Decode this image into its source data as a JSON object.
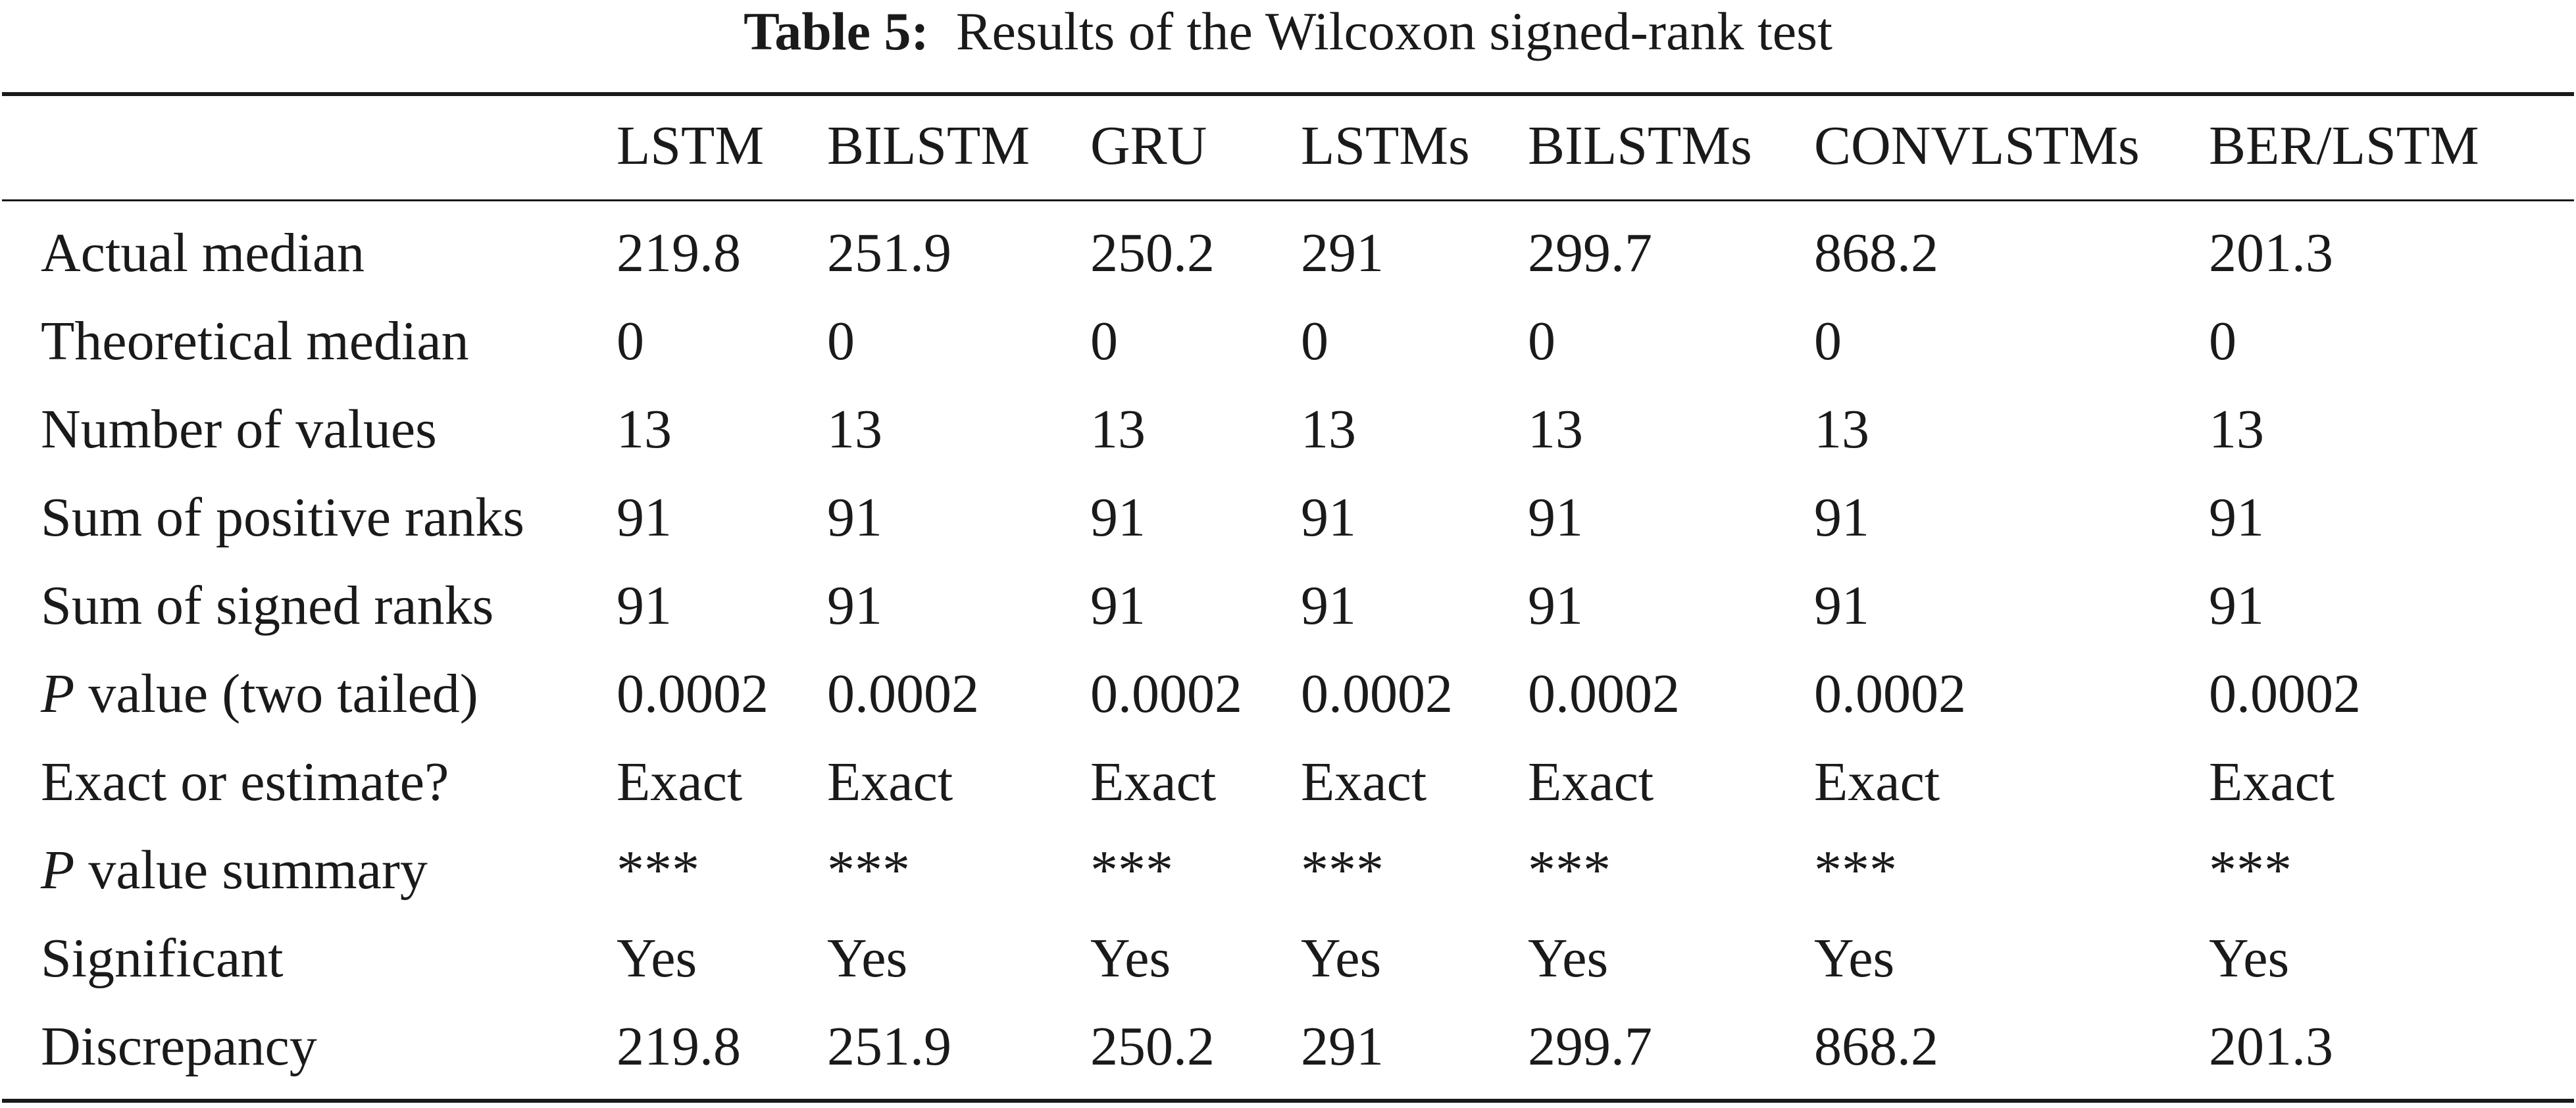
{
  "caption": {
    "label": "Table 5:",
    "text": "Results of the Wilcoxon signed-rank test"
  },
  "columns": [
    "LSTM",
    "BILSTM",
    "GRU",
    "LSTMs",
    "BILSTMs",
    "CONVLSTMs",
    "BER/LSTM"
  ],
  "rows": [
    {
      "label": "Actual median",
      "label_italic": "",
      "label_rest": "",
      "values": [
        "219.8",
        "251.9",
        "250.2",
        "291",
        "299.7",
        "868.2",
        "201.3"
      ]
    },
    {
      "label": "Theoretical median",
      "label_italic": "",
      "label_rest": "",
      "values": [
        "0",
        "0",
        "0",
        "0",
        "0",
        "0",
        "0"
      ]
    },
    {
      "label": "Number of values",
      "label_italic": "",
      "label_rest": "",
      "values": [
        "13",
        "13",
        "13",
        "13",
        "13",
        "13",
        "13"
      ]
    },
    {
      "label": "Sum of positive ranks",
      "label_italic": "",
      "label_rest": "",
      "values": [
        "91",
        "91",
        "91",
        "91",
        "91",
        "91",
        "91"
      ]
    },
    {
      "label": "Sum of signed ranks",
      "label_italic": "",
      "label_rest": "",
      "values": [
        "91",
        "91",
        "91",
        "91",
        "91",
        "91",
        "91"
      ]
    },
    {
      "label": "",
      "label_italic": "P",
      "label_rest": " value (two tailed)",
      "values": [
        "0.0002",
        "0.0002",
        "0.0002",
        "0.0002",
        "0.0002",
        "0.0002",
        "0.0002"
      ]
    },
    {
      "label": "Exact or estimate?",
      "label_italic": "",
      "label_rest": "",
      "values": [
        "Exact",
        "Exact",
        "Exact",
        "Exact",
        "Exact",
        "Exact",
        "Exact"
      ]
    },
    {
      "label": "",
      "label_italic": "P",
      "label_rest": " value summary",
      "values": [
        "***",
        "***",
        "***",
        "***",
        "***",
        "***",
        "***"
      ]
    },
    {
      "label": "Significant",
      "label_italic": "",
      "label_rest": "",
      "values": [
        "Yes",
        "Yes",
        "Yes",
        "Yes",
        "Yes",
        "Yes",
        "Yes"
      ]
    },
    {
      "label": "Discrepancy",
      "label_italic": "",
      "label_rest": "",
      "values": [
        "219.8",
        "251.9",
        "250.2",
        "291",
        "299.7",
        "868.2",
        "201.3"
      ]
    }
  ]
}
